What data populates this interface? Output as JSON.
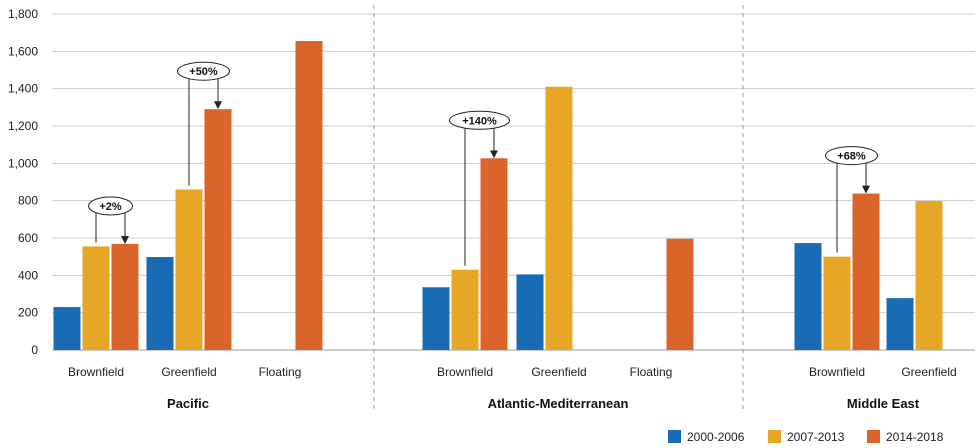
{
  "chart_data": {
    "type": "bar",
    "ylim": [
      0,
      1800
    ],
    "yticks": [
      "0",
      "200",
      "400",
      "600",
      "800",
      "1,000",
      "1,200",
      "1,400",
      "1,600",
      "1,800"
    ],
    "grid": true,
    "legend_placement": "bottom-right",
    "series": [
      {
        "name": "2000-2006",
        "color": "#1a6bb5"
      },
      {
        "name": "2007-2013",
        "color": "#e8a626"
      },
      {
        "name": "2014-2018",
        "color": "#d9652b"
      }
    ],
    "groups": [
      {
        "region": "Pacific",
        "categories": [
          {
            "label": "Brownfield",
            "values": [
              230,
              555,
              568
            ]
          },
          {
            "label": "Greenfield",
            "values": [
              498,
              860,
              1290
            ]
          },
          {
            "label": "Floating",
            "values": [
              null,
              null,
              1655
            ]
          }
        ]
      },
      {
        "region": "Atlantic-Mediterranean",
        "categories": [
          {
            "label": "Brownfield",
            "values": [
              336,
              430,
              1027
            ]
          },
          {
            "label": "Greenfield",
            "values": [
              405,
              1410,
              null
            ]
          },
          {
            "label": "Floating",
            "values": [
              null,
              null,
              596
            ]
          }
        ]
      },
      {
        "region": "Middle East",
        "categories": [
          {
            "label": "Brownfield",
            "values": [
              573,
              500,
              838
            ]
          },
          {
            "label": "Greenfield",
            "values": [
              278,
              798,
              null
            ]
          }
        ]
      }
    ],
    "annotations": [
      {
        "text": "+2%",
        "group": 0,
        "category": 0,
        "from_series": 1,
        "to_series": 2
      },
      {
        "text": "+50%",
        "group": 0,
        "category": 1,
        "from_series": 1,
        "to_series": 2
      },
      {
        "text": "+140%",
        "group": 1,
        "category": 0,
        "from_series": 1,
        "to_series": 2
      },
      {
        "text": "+68%",
        "group": 2,
        "category": 0,
        "from_series": 1,
        "to_series": 2
      }
    ]
  }
}
